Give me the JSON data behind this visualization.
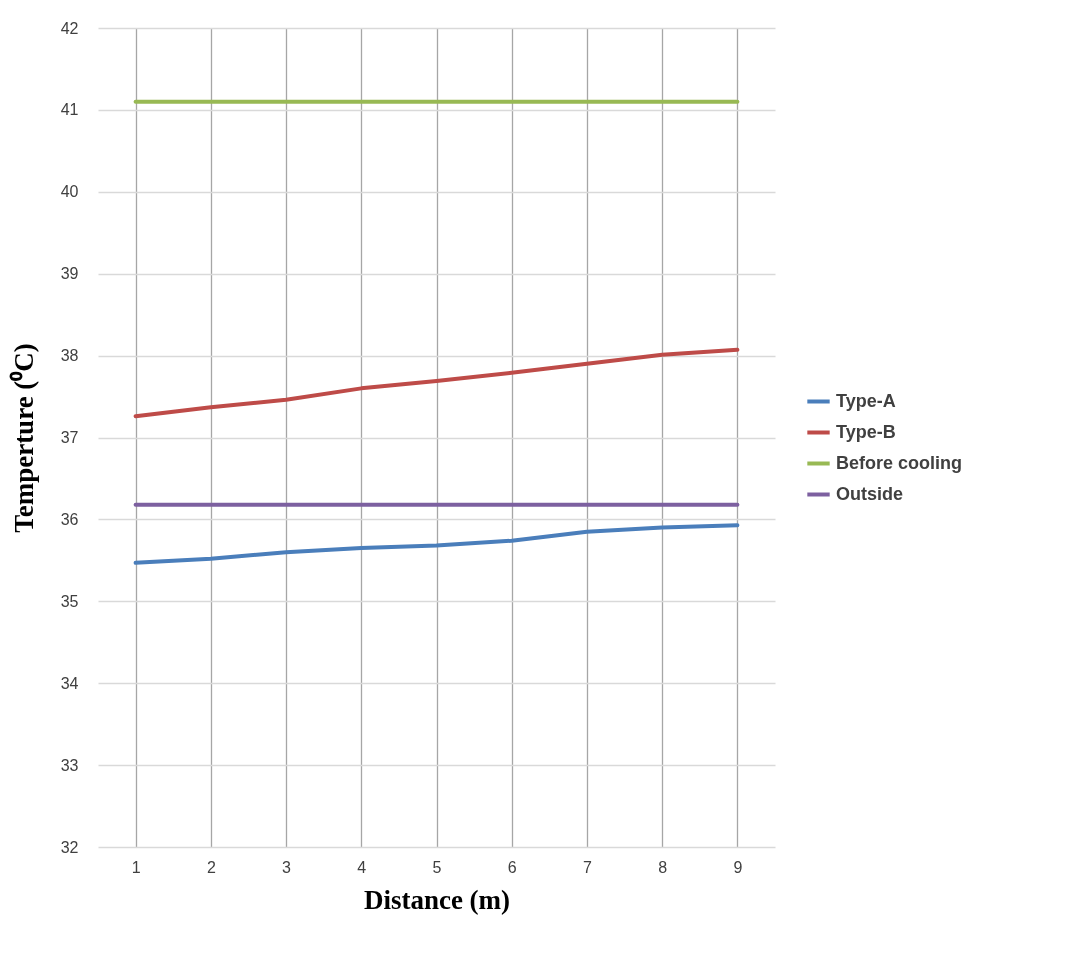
{
  "chart_data": {
    "type": "line",
    "xlabel": "Distance (m)",
    "ylabel": "Temperture (⁰C)",
    "categories": [
      "1",
      "2",
      "3",
      "4",
      "5",
      "6",
      "7",
      "8",
      "9"
    ],
    "series": [
      {
        "name": "Type-A",
        "color": "#4a7ebb",
        "values": [
          35.47,
          35.52,
          35.6,
          35.65,
          35.68,
          35.74,
          35.85,
          35.9,
          35.93
        ]
      },
      {
        "name": "Type-B",
        "color": "#be4b48",
        "values": [
          37.26,
          37.37,
          37.46,
          37.6,
          37.69,
          37.79,
          37.9,
          38.01,
          38.07
        ]
      },
      {
        "name": "Before cooling",
        "color": "#98b954",
        "values": [
          41.1,
          41.1,
          41.1,
          41.1,
          41.1,
          41.1,
          41.1,
          41.1,
          41.1
        ]
      },
      {
        "name": "Outside",
        "color": "#7d60a0",
        "values": [
          36.18,
          36.18,
          36.18,
          36.18,
          36.18,
          36.18,
          36.18,
          36.18,
          36.18
        ]
      }
    ],
    "ylim": [
      32,
      42
    ],
    "yticks": [
      32,
      33,
      34,
      35,
      36,
      37,
      38,
      39,
      40,
      41,
      42
    ],
    "grid": true,
    "legend": "right",
    "marker": "none",
    "line_style": "solid"
  }
}
